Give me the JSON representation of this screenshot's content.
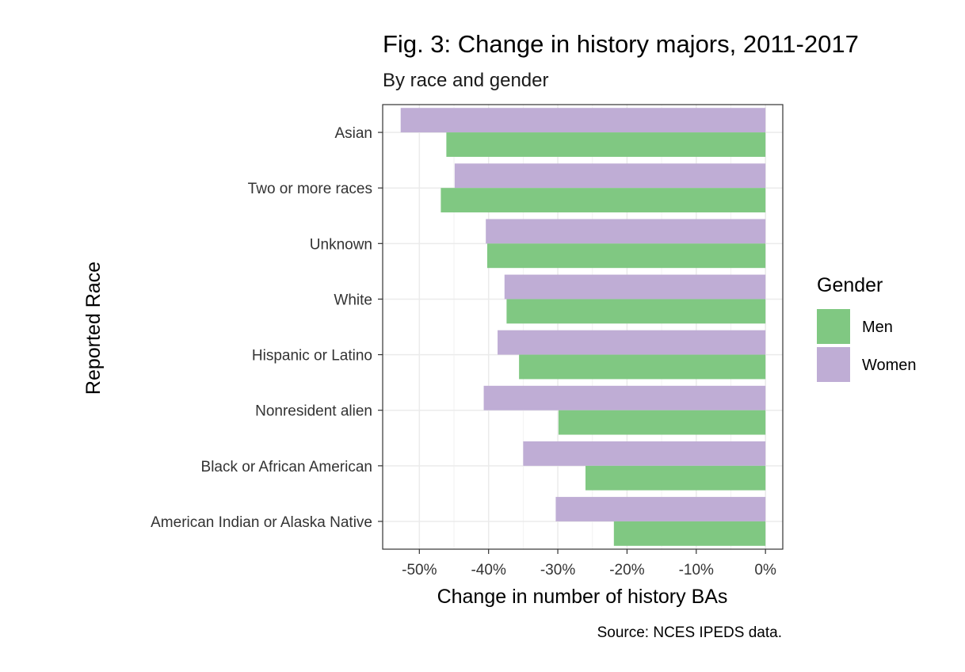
{
  "chart_data": {
    "type": "bar",
    "orientation": "horizontal",
    "title": "Fig. 3: Change in history majors, 2011-2017",
    "subtitle": "By race and gender",
    "xlabel": "Change in number of history BAs",
    "ylabel": "Reported Race",
    "caption": "Source: NCES IPEDS data.",
    "categories": [
      "Asian",
      "Two or more races",
      "Unknown",
      "White",
      "Hispanic or Latino",
      "Nonresident alien",
      "Black or African American",
      "American Indian or Alaska Native"
    ],
    "series": [
      {
        "name": "Men",
        "color": "#80c882",
        "values": [
          -46.1,
          -46.9,
          -40.2,
          -37.4,
          -35.6,
          -29.9,
          -26.0,
          -21.9
        ]
      },
      {
        "name": "Women",
        "color": "#bfadd5",
        "values": [
          -52.7,
          -44.9,
          -40.4,
          -37.7,
          -38.7,
          -40.7,
          -35.0,
          -30.3
        ]
      }
    ],
    "xlim": [
      -55.3,
      2.5
    ],
    "xticks": [
      -50,
      -40,
      -30,
      -20,
      -10,
      0
    ],
    "xtick_labels": [
      "-50%",
      "-40%",
      "-30%",
      "-20%",
      "-10%",
      "0%"
    ],
    "legend": {
      "title": "Gender",
      "position": "right",
      "entries": [
        "Men",
        "Women"
      ]
    },
    "grid": true
  }
}
